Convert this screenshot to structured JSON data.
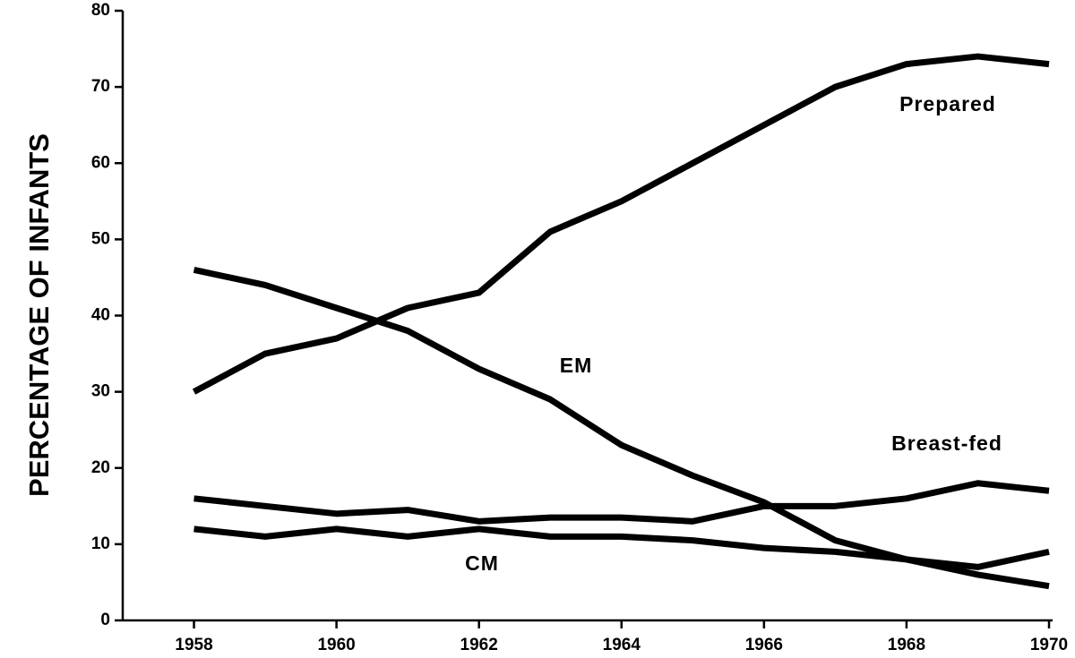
{
  "chart_data": {
    "type": "line",
    "y_label": "PERCENTAGE OF INFANTS",
    "x": [
      1958,
      1959,
      1960,
      1961,
      1962,
      1963,
      1964,
      1965,
      1966,
      1967,
      1968,
      1969,
      1970
    ],
    "series": [
      {
        "name": "Prepared",
        "color": "#000000",
        "values": [
          30,
          35,
          37,
          41,
          43,
          51,
          55,
          60,
          65,
          70,
          73,
          74,
          73
        ]
      },
      {
        "name": "EM",
        "color": "#000000",
        "values": [
          46,
          44,
          41,
          38,
          33,
          29,
          23,
          19,
          15.5,
          10.5,
          8,
          6,
          4.5
        ]
      },
      {
        "name": "Breast-fed",
        "color": "#000000",
        "values": [
          16,
          15,
          14,
          14.5,
          13,
          13.5,
          13.5,
          13,
          15,
          15,
          16,
          18,
          17
        ]
      },
      {
        "name": "CM",
        "color": "#000000",
        "values": [
          12,
          11,
          12,
          11,
          12,
          11,
          11,
          10.5,
          9.5,
          9,
          8,
          7,
          9
        ]
      }
    ],
    "xlim": [
      1957,
      1970
    ],
    "xticks": [
      1958,
      1960,
      1962,
      1964,
      1966,
      1968,
      1970
    ],
    "ylim": [
      0,
      80
    ],
    "yticks": [
      0,
      10,
      20,
      30,
      40,
      50,
      60,
      70,
      80
    ],
    "grid": false
  }
}
